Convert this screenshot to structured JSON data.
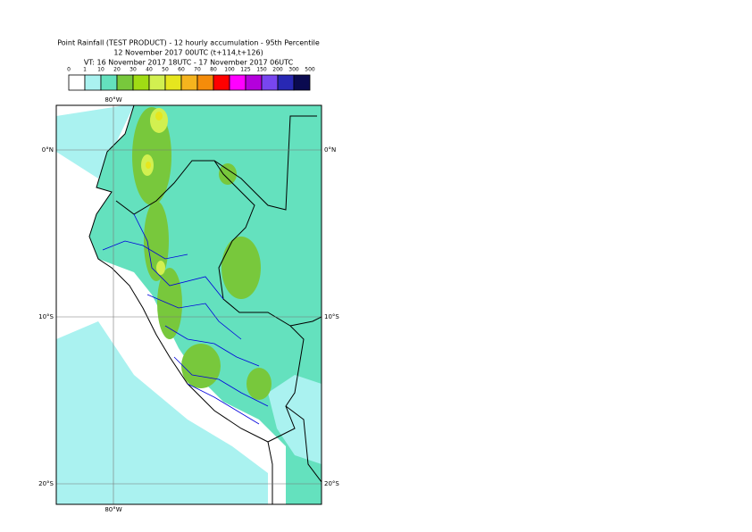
{
  "header": {
    "lines": [
      "Point Rainfall (TEST PRODUCT) - 12 hourly accumulation - 95th Percentile",
      "12 November 2017 00UTC (t+114,t+126)",
      "VT: 16 November 2017 18UTC - 17 November 2017 06UTC"
    ]
  },
  "legend": {
    "bounds": [
      0,
      1,
      10,
      20,
      30,
      40,
      50,
      60,
      70,
      80,
      100,
      125,
      150,
      200,
      300,
      500
    ],
    "colors": [
      "#ffffff",
      "#aaf2f0",
      "#64e1be",
      "#78c83c",
      "#a0dc14",
      "#d2f050",
      "#e6e61e",
      "#f5b41e",
      "#f58c0a",
      "#ff0000",
      "#ff00ff",
      "#b400dc",
      "#7846f0",
      "#2828b4",
      "#0a0a50"
    ]
  },
  "map": {
    "top_labels": [
      "80°W"
    ],
    "bottom_labels": [
      "80°W"
    ],
    "left_labels": [
      "0°N",
      "10°S",
      "20°S"
    ],
    "right_labels": [
      "0°N",
      "10°S",
      "20°S"
    ]
  }
}
